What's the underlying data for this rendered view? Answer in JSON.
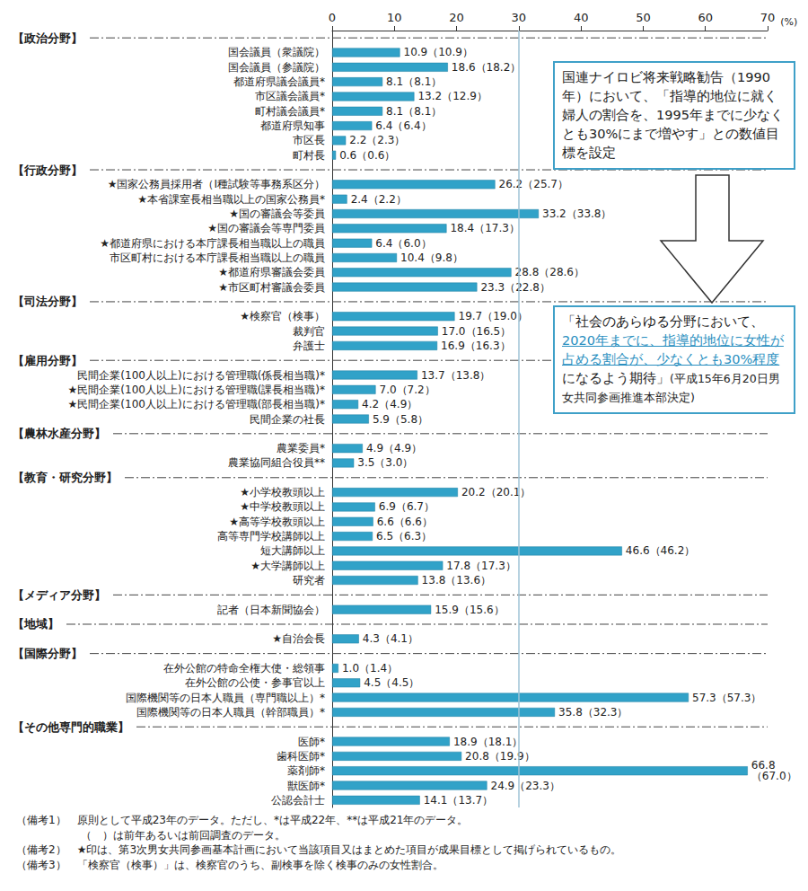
{
  "chart_data": {
    "type": "bar",
    "orientation": "horizontal",
    "color": "#31a2c8",
    "grid": false,
    "data_labels": true,
    "x_label": "(%)",
    "xlim": [
      0,
      70
    ],
    "xticks": [
      0,
      10,
      20,
      30,
      40,
      50,
      60,
      70
    ],
    "reference_line": 30,
    "sections": [
      {
        "title": "【政治分野】",
        "categories": [
          "国会議員（衆議院）",
          "国会議員（参議院）",
          "都道府県議会議員*",
          "市区議会議員*",
          "町村議会議員*",
          "都道府県知事",
          "市区長",
          "町村長"
        ],
        "values": [
          10.9,
          18.6,
          8.1,
          13.2,
          8.1,
          6.4,
          2.2,
          0.6
        ],
        "value_labels": [
          "10.9（10.9）",
          "18.6（18.2）",
          "8.1（8.1）",
          "13.2（12.9）",
          "8.1（8.1）",
          "6.4（6.4）",
          "2.2（2.3）",
          "0.6（0.6）"
        ]
      },
      {
        "title": "【行政分野】",
        "categories": [
          "★国家公務員採用者（Ⅰ種試験等事務系区分）",
          "★本省課室長相当職以上の国家公務員*",
          "★国の審議会等委員",
          "★国の審議会等専門委員",
          "★都道府県における本庁課長相当職以上の職員",
          "市区町村における本庁課長相当職以上の職員",
          "★都道府県審議会委員",
          "★市区町村審議会委員"
        ],
        "values": [
          26.2,
          2.4,
          33.2,
          18.4,
          6.4,
          10.4,
          28.8,
          23.3
        ],
        "value_labels": [
          "26.2（25.7）",
          "2.4（2.2）",
          "33.2（33.8）",
          "18.4（17.3）",
          "6.4（6.0）",
          "10.4（9.8）",
          "28.8（28.6）",
          "23.3（22.8）"
        ]
      },
      {
        "title": "【司法分野】",
        "categories": [
          "★検察官（検事）",
          "裁判官",
          "弁護士"
        ],
        "values": [
          19.7,
          17.0,
          16.9
        ],
        "value_labels": [
          "19.7（19.0）",
          "17.0（16.5）",
          "16.9（16.3）"
        ]
      },
      {
        "title": "【雇用分野】",
        "categories": [
          "民間企業(100人以上)における管理職(係長相当職)*",
          "★民間企業(100人以上)における管理職(課長相当職)*",
          "★民間企業(100人以上)における管理職(部長相当職)*",
          "民間企業の社長"
        ],
        "values": [
          13.7,
          7.0,
          4.2,
          5.9
        ],
        "value_labels": [
          "13.7（13.8）",
          "7.0（7.2）",
          "4.2（4.9）",
          "5.9（5.8）"
        ]
      },
      {
        "title": "【農林水産分野】",
        "categories": [
          "農業委員*",
          "農業協同組合役員**"
        ],
        "values": [
          4.9,
          3.5
        ],
        "value_labels": [
          "4.9（4.9）",
          "3.5（3.0）"
        ]
      },
      {
        "title": "【教育・研究分野】",
        "categories": [
          "★小学校教頭以上",
          "★中学校教頭以上",
          "★高等学校教頭以上",
          "高等専門学校講師以上",
          "短大講師以上",
          "★大学講師以上",
          "研究者"
        ],
        "values": [
          20.2,
          6.9,
          6.6,
          6.5,
          46.6,
          17.8,
          13.8
        ],
        "value_labels": [
          "20.2（20.1）",
          "6.9（6.7）",
          "6.6（6.6）",
          "6.5（6.3）",
          "46.6（46.2）",
          "17.8（17.3）",
          "13.8（13.6）"
        ]
      },
      {
        "title": "【メディア分野】",
        "categories": [
          "記者（日本新聞協会）"
        ],
        "values": [
          15.9
        ],
        "value_labels": [
          "15.9（15.6）"
        ]
      },
      {
        "title": "【地域】",
        "categories": [
          "★自治会長"
        ],
        "values": [
          4.3
        ],
        "value_labels": [
          "4.3（4.1）"
        ]
      },
      {
        "title": "【国際分野】",
        "categories": [
          "在外公館の特命全権大使・総領事",
          "在外公館の公使・参事官以上",
          "国際機関等の日本人職員（専門職以上）*",
          "国際機関等の日本人職員（幹部職員）*"
        ],
        "values": [
          1.0,
          4.5,
          57.3,
          35.8
        ],
        "value_labels": [
          "1.0（1.4）",
          "4.5（4.5）",
          "57.3（57.3）",
          "35.8（32.3）"
        ]
      },
      {
        "title": "【その他専門的職業】",
        "categories": [
          "医師*",
          "歯科医師*",
          "薬剤師*",
          "獣医師*",
          "公認会計士"
        ],
        "values": [
          18.9,
          20.8,
          66.8,
          24.9,
          14.1
        ],
        "value_labels": [
          "18.9（18.1）",
          "20.8（19.9）",
          "66.8\n（67.0）",
          "24.9（23.3）",
          "14.1（13.7）"
        ]
      }
    ],
    "annotations": [
      [
        {
          "text": "国連ナイロビ将来戦略勧告（1990年）において、「指導的地位に就く婦人の割合を、1995年までに少なくとも30%にまで増やす」との数値目標を設定"
        }
      ],
      [
        {
          "text": "「社会のあらゆる分野において、"
        },
        {
          "text": "2020年までに、指導的地位に女性が占める割合が、少なくとも30%程度",
          "highlight": true
        },
        {
          "text": "になるよう期待」"
        },
        {
          "text": "(平成15年6月20日男女共同参画推進本部決定)",
          "small": true
        }
      ]
    ],
    "notes": [
      "（備考1）　原則として平成23年のデータ。ただし、*は平成22年、**は平成21年のデータ。",
      "（　）は前年あるいは前回調査のデータ。",
      "（備考2）　★印は、第3次男女共同参画基本計画において当該項目又はまとめた項目が成果目標として掲げられているもの。",
      "（備考3）　「検察官（検事）」は、検察官のうち、副検事を除く検事のみの女性割合。"
    ]
  }
}
